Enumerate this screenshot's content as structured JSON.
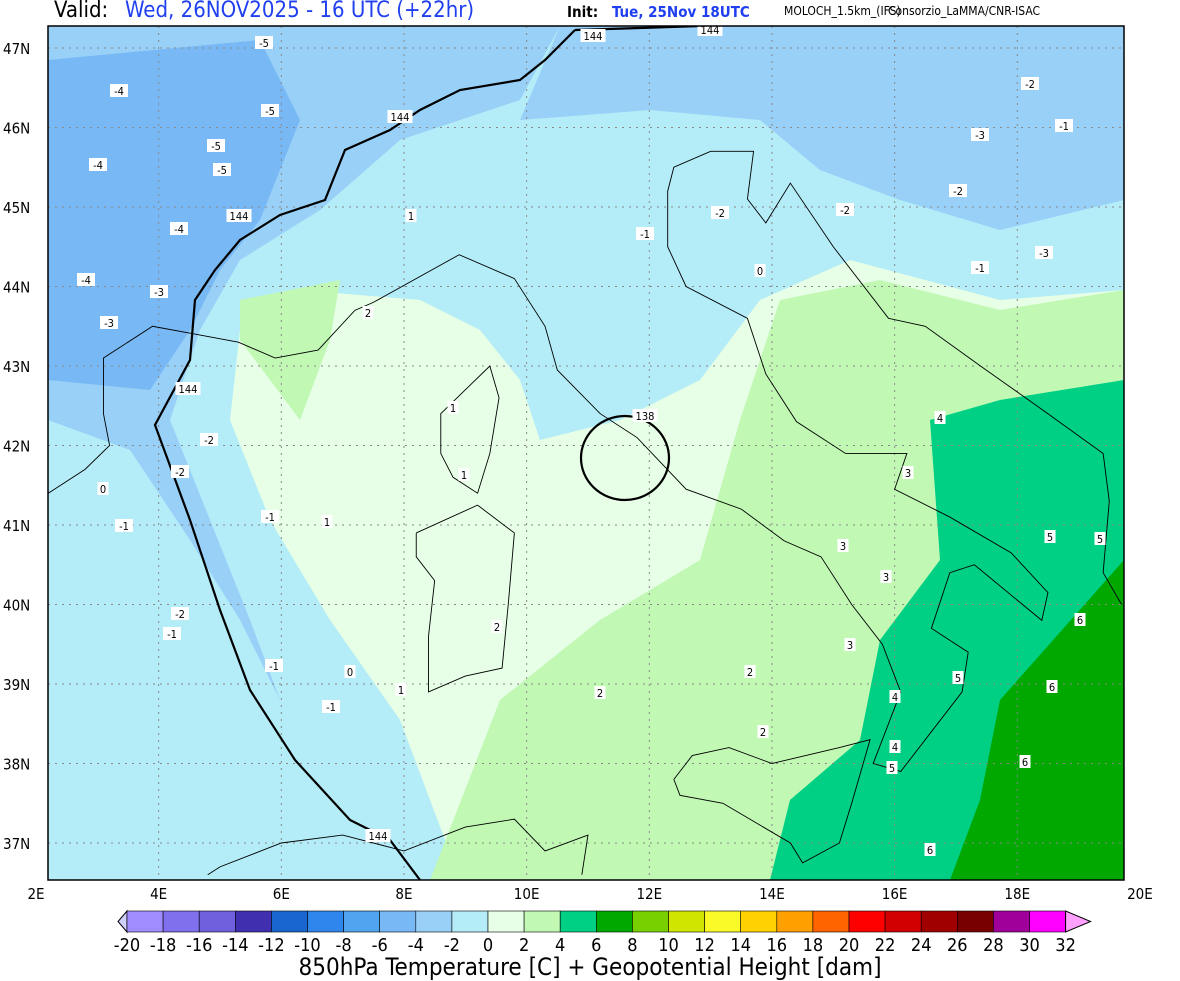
{
  "header": {
    "valid_label": "Valid:",
    "valid_value": "Wed, 26NOV2025 - 16 UTC (+22hr)",
    "init_label": "Init:",
    "init_value": "Tue, 25Nov 18UTC",
    "model": "MOLOCH_1.5km_(IFS)",
    "institution": "Consorzio_LaMMA/CNR-ISAC"
  },
  "map": {
    "lon_labels": [
      "2E",
      "4E",
      "6E",
      "8E",
      "10E",
      "12E",
      "14E",
      "16E",
      "18E",
      "20E"
    ],
    "lat_labels": [
      "47N",
      "46N",
      "45N",
      "44N",
      "43N",
      "42N",
      "41N",
      "40N",
      "39N",
      "38N",
      "37N"
    ],
    "height_labels": [
      "144",
      "144",
      "144",
      "144",
      "144",
      "144",
      "138"
    ],
    "temp_labels": [
      "-5",
      "-4",
      "-5",
      "-5",
      "-4",
      "-5",
      "-4",
      "-3",
      "-3",
      "-4",
      "-2",
      "-2",
      "-1",
      "-1",
      "0",
      "-1",
      "-2",
      "-1",
      "0",
      "-1",
      "-2",
      "-1",
      "-3",
      "-2",
      "-1",
      "-3",
      "-2",
      "-2",
      "-1",
      "0",
      "1",
      "1",
      "1",
      "1",
      "1",
      "2",
      "2",
      "2",
      "2",
      "2",
      "3",
      "3",
      "3",
      "3",
      "4",
      "4",
      "4",
      "5",
      "5",
      "5",
      "6",
      "6",
      "6",
      "5",
      "6"
    ]
  },
  "colorbar": {
    "title": "850hPa Temperature [C] + Geopotential Height [dam]",
    "ticks": [
      "-20",
      "-18",
      "-16",
      "-14",
      "-12",
      "-10",
      "-8",
      "-6",
      "-4",
      "-2",
      "0",
      "2",
      "4",
      "6",
      "8",
      "10",
      "12",
      "14",
      "16",
      "18",
      "20",
      "22",
      "24",
      "26",
      "28",
      "30",
      "32"
    ],
    "colors": [
      "#a08cff",
      "#8070ee",
      "#7060dd",
      "#4030b0",
      "#1a66d0",
      "#2f86ec",
      "#50a4f0",
      "#78b8f4",
      "#98d0f8",
      "#b4ecf8",
      "#e6ffe6",
      "#c0f8b4",
      "#00d084",
      "#00a800",
      "#78d000",
      "#d0e600",
      "#fafa28",
      "#ffd200",
      "#ffa000",
      "#ff6400",
      "#ff0000",
      "#d20000",
      "#a00000",
      "#780000",
      "#a0009a",
      "#ff00ff"
    ],
    "under_color": "#d0d0ff",
    "over_color": "#ffa0ff"
  }
}
